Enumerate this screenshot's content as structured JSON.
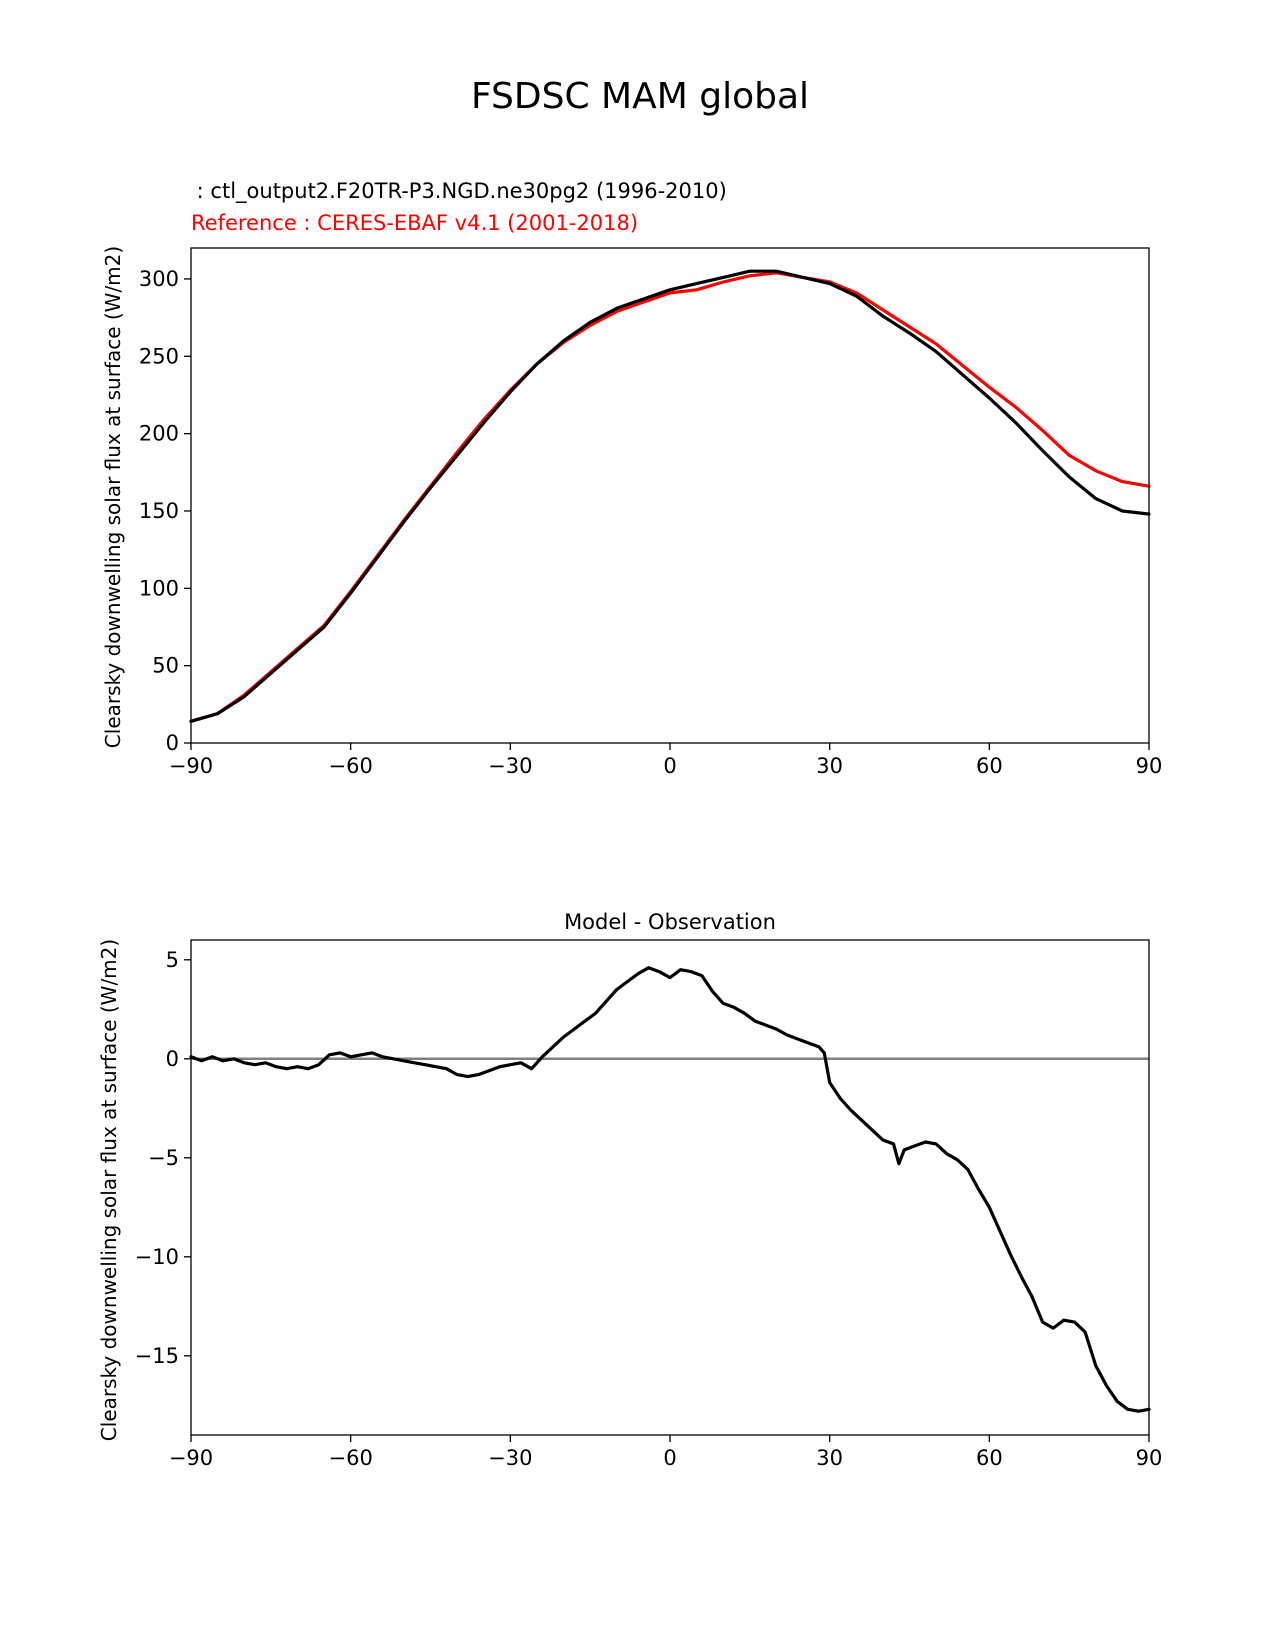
{
  "figure_title": "FSDSC MAM global",
  "chart_data": [
    {
      "type": "line",
      "test_label": " : ctl_output2.F20TR-P3.NGD.ne30pg2 (1996-2010)",
      "ref_label": "Reference : CERES-EBAF v4.1 (2001-2018)",
      "title": "",
      "xlabel": "",
      "ylabel": "Clearsky downwelling solar flux at surface (W/m2)",
      "xlim": [
        -90,
        90
      ],
      "ylim": [
        0,
        320
      ],
      "xticks": [
        -90,
        -60,
        -30,
        0,
        30,
        60,
        90
      ],
      "xtick_labels": [
        "−90",
        "−60",
        "−30",
        "0",
        "30",
        "60",
        "90"
      ],
      "yticks": [
        0,
        50,
        100,
        150,
        200,
        250,
        300
      ],
      "ytick_labels": [
        "0",
        "50",
        "100",
        "150",
        "200",
        "250",
        "300"
      ],
      "series": [
        {
          "name": "Reference : CERES-EBAF v4.1 (2001-2018)",
          "color": "#ff0000",
          "x": [
            -90,
            -85,
            -80,
            -75,
            -70,
            -65,
            -60,
            -55,
            -50,
            -45,
            -40,
            -35,
            -30,
            -25,
            -20,
            -15,
            -10,
            -5,
            0,
            5,
            10,
            15,
            20,
            25,
            30,
            35,
            40,
            45,
            50,
            55,
            60,
            65,
            70,
            75,
            80,
            85,
            90
          ],
          "y": [
            14,
            19,
            31,
            46,
            61,
            76,
            98,
            121,
            144,
            166,
            188,
            209,
            228,
            245,
            259,
            270,
            279,
            285,
            291,
            293,
            298,
            302,
            304,
            301,
            298,
            291,
            280,
            269,
            258,
            244,
            230,
            217,
            202,
            186,
            176,
            169,
            166
          ]
        },
        {
          "name": "ctl_output2.F20TR-P3.NGD.ne30pg2 (1996-2010)",
          "color": "#000000",
          "x": [
            -90,
            -85,
            -80,
            -75,
            -70,
            -65,
            -60,
            -55,
            -50,
            -45,
            -40,
            -35,
            -30,
            -25,
            -20,
            -15,
            -10,
            -5,
            0,
            5,
            10,
            15,
            20,
            25,
            30,
            35,
            40,
            45,
            50,
            55,
            60,
            65,
            70,
            75,
            80,
            85,
            90
          ],
          "y": [
            14,
            19,
            30,
            45,
            60,
            75,
            97,
            120,
            143,
            165,
            186,
            207,
            227,
            245,
            260,
            272,
            281,
            287,
            293,
            297,
            301,
            305,
            305,
            301,
            297,
            289,
            276,
            265,
            253,
            238,
            223,
            207,
            189,
            172,
            158,
            150,
            148
          ]
        }
      ]
    },
    {
      "type": "line",
      "title": "Model - Observation",
      "xlabel": "",
      "ylabel": "Clearsky downwelling solar flux at surface (W/m2)",
      "xlim": [
        -90,
        90
      ],
      "ylim": [
        -19,
        6
      ],
      "xticks": [
        -90,
        -60,
        -30,
        0,
        30,
        60,
        90
      ],
      "xtick_labels": [
        "−90",
        "−60",
        "−30",
        "0",
        "30",
        "60",
        "90"
      ],
      "yticks": [
        5,
        0,
        -5,
        -10,
        -15
      ],
      "ytick_labels": [
        "5",
        "0",
        "−5",
        "−10",
        "−15"
      ],
      "zero_line_color": "#808080",
      "series": [
        {
          "name": "Model - Observation",
          "color": "#000000",
          "x": [
            -90,
            -88,
            -86,
            -84,
            -82,
            -80,
            -78,
            -76,
            -74,
            -72,
            -70,
            -68,
            -66,
            -64,
            -62,
            -60,
            -58,
            -56,
            -54,
            -52,
            -50,
            -48,
            -46,
            -44,
            -42,
            -40,
            -38,
            -36,
            -34,
            -32,
            -30,
            -28,
            -26,
            -24,
            -22,
            -20,
            -18,
            -16,
            -14,
            -12,
            -10,
            -8,
            -6,
            -4,
            -2,
            0,
            2,
            4,
            6,
            8,
            10,
            12,
            14,
            16,
            18,
            20,
            22,
            24,
            26,
            28,
            29,
            30,
            32,
            34,
            36,
            38,
            40,
            42,
            43,
            44,
            46,
            48,
            50,
            52,
            54,
            56,
            58,
            60,
            62,
            64,
            66,
            68,
            70,
            72,
            74,
            76,
            78,
            80,
            82,
            84,
            86,
            88,
            90
          ],
          "y": [
            0.1,
            -0.1,
            0.1,
            -0.1,
            0.0,
            -0.2,
            -0.3,
            -0.2,
            -0.4,
            -0.5,
            -0.4,
            -0.5,
            -0.3,
            0.2,
            0.3,
            0.1,
            0.2,
            0.3,
            0.1,
            0.0,
            -0.1,
            -0.2,
            -0.3,
            -0.4,
            -0.5,
            -0.8,
            -0.9,
            -0.8,
            -0.6,
            -0.4,
            -0.3,
            -0.2,
            -0.5,
            0.1,
            0.6,
            1.1,
            1.5,
            1.9,
            2.3,
            2.9,
            3.5,
            3.9,
            4.3,
            4.6,
            4.4,
            4.1,
            4.5,
            4.4,
            4.2,
            3.4,
            2.8,
            2.6,
            2.3,
            1.9,
            1.7,
            1.5,
            1.2,
            1.0,
            0.8,
            0.6,
            0.3,
            -1.2,
            -2.0,
            -2.6,
            -3.1,
            -3.6,
            -4.1,
            -4.3,
            -5.3,
            -4.6,
            -4.4,
            -4.2,
            -4.3,
            -4.8,
            -5.1,
            -5.6,
            -6.6,
            -7.5,
            -8.7,
            -9.9,
            -11.0,
            -12.0,
            -13.3,
            -13.6,
            -13.2,
            -13.3,
            -13.8,
            -15.5,
            -16.5,
            -17.3,
            -17.7,
            -17.8,
            -17.7
          ]
        }
      ]
    }
  ]
}
